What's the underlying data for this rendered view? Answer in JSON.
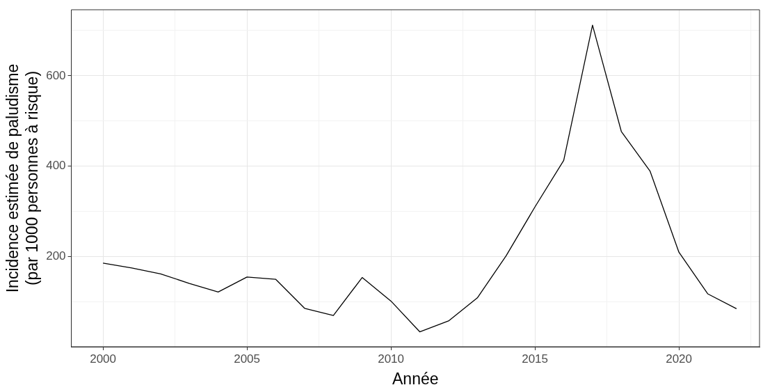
{
  "chart_data": {
    "type": "line",
    "xlabel": "Année",
    "ylabel": "Incidence estimée de paludisme\n(par 1000 personnes à risque)",
    "x": [
      2000,
      2001,
      2002,
      2003,
      2004,
      2005,
      2006,
      2007,
      2008,
      2009,
      2010,
      2011,
      2012,
      2013,
      2014,
      2015,
      2016,
      2017,
      2018,
      2019,
      2020,
      2021,
      2022
    ],
    "series": [
      {
        "color": "#000000",
        "values": [
          186,
          175,
          162,
          141,
          122,
          155,
          150,
          86,
          70,
          154,
          102,
          34,
          58,
          109,
          202,
          310,
          413,
          712,
          477,
          389,
          210,
          118,
          85
        ]
      }
    ],
    "xlim": [
      1998.9,
      2022.8
    ],
    "ylim": [
      1,
      746
    ],
    "xticks": [
      2000,
      {
        "value": 2002.5,
        "label": null
      },
      2005,
      {
        "value": 2007.5,
        "label": null
      },
      2010,
      {
        "value": 2012.5,
        "label": null
      },
      2015,
      {
        "value": 2017.5,
        "label": null
      },
      2020,
      {
        "value": 2022.5,
        "label": null
      }
    ],
    "yticks": [
      {
        "value": 100,
        "label": null
      },
      200,
      {
        "value": 300,
        "label": null
      },
      400,
      {
        "value": 500,
        "label": null
      },
      600,
      {
        "value": 700,
        "label": null
      }
    ],
    "grid": true,
    "legend": false,
    "marker": "none",
    "line_style": "solid"
  }
}
